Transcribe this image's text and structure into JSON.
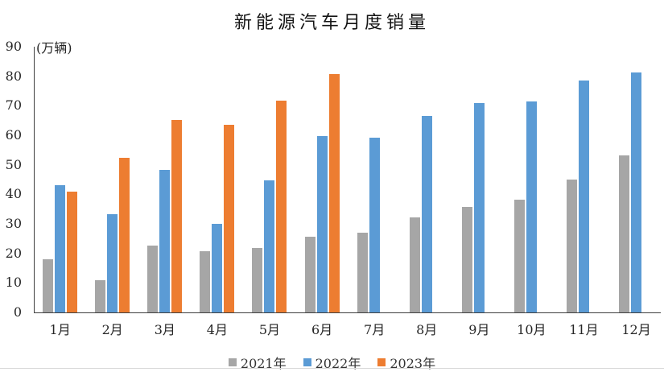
{
  "title": "新能源汽车月度销量",
  "unit_label": "(万辆)",
  "chart_data": {
    "type": "bar",
    "title": "新能源汽车月度销量",
    "ylabel": "(万辆)",
    "categories": [
      "1月",
      "2月",
      "3月",
      "4月",
      "5月",
      "6月",
      "7月",
      "8月",
      "9月",
      "10月",
      "11月",
      "12月"
    ],
    "series": [
      {
        "name": "2021年",
        "color": "#A6A6A6",
        "values": [
          17.9,
          11.0,
          22.6,
          20.6,
          21.7,
          25.6,
          27.1,
          32.1,
          35.7,
          38.3,
          45.0,
          53.1
        ]
      },
      {
        "name": "2022年",
        "color": "#5B9BD5",
        "values": [
          43.1,
          33.4,
          48.4,
          29.9,
          44.7,
          59.6,
          59.3,
          66.6,
          70.8,
          71.4,
          78.6,
          81.4
        ]
      },
      {
        "name": "2023年",
        "color": "#ED7D31",
        "values": [
          40.8,
          52.5,
          65.3,
          63.6,
          71.7,
          80.6,
          null,
          null,
          null,
          null,
          null,
          null
        ]
      }
    ],
    "ylim": [
      0,
      90
    ],
    "ytick_step": 10,
    "ytick_labels": [
      "0",
      "10",
      "20",
      "30",
      "40",
      "50",
      "60",
      "70",
      "80",
      "90"
    ],
    "grid": false,
    "legend_position": "bottom"
  },
  "colors": {
    "axis": "#3f3f3f",
    "text": "#262626",
    "divider": "#d9d9d9",
    "background": "#ffffff"
  }
}
